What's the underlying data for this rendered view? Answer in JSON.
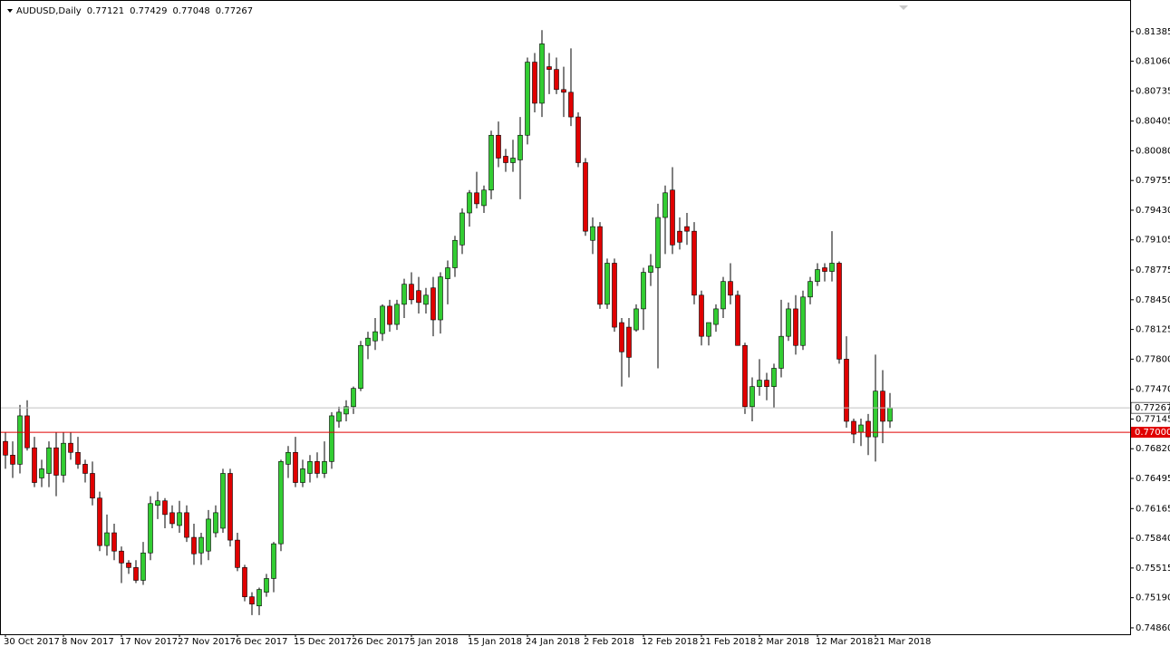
{
  "chart_data": {
    "type": "candlestick",
    "title": "AUDUSD,Daily",
    "categories": [
      "30 Oct 2017",
      null,
      null,
      null,
      null,
      null,
      null,
      null,
      "8 Nov 2017",
      null,
      null,
      null,
      null,
      null,
      null,
      null,
      "17 Nov 2017",
      null,
      null,
      null,
      null,
      null,
      null,
      null,
      "27 Nov 2017",
      null,
      null,
      null,
      null,
      null,
      null,
      null,
      "6 Dec 2017",
      null,
      null,
      null,
      null,
      null,
      null,
      null,
      "15 Dec 2017",
      null,
      null,
      null,
      null,
      null,
      null,
      null,
      "26 Dec 2017",
      null,
      null,
      null,
      null,
      null,
      null,
      null,
      "5 Jan 2018",
      null,
      null,
      null,
      null,
      null,
      null,
      null,
      "15 Jan 2018",
      null,
      null,
      null,
      null,
      null,
      null,
      null,
      "24 Jan 2018",
      null,
      null,
      null,
      null,
      null,
      null,
      null,
      "2 Feb 2018",
      null,
      null,
      null,
      null,
      null,
      null,
      null,
      "12 Feb 2018",
      null,
      null,
      null,
      null,
      null,
      null,
      null,
      "21 Feb 2018",
      null,
      null,
      null,
      null,
      null,
      null,
      null,
      "2 Mar 2018",
      null,
      null,
      null,
      null,
      null,
      null,
      null,
      "12 Mar 2018",
      null,
      null,
      null,
      null,
      null,
      null,
      null,
      "21 Mar 2018",
      null,
      null
    ],
    "open": [
      0.769,
      0.7675,
      0.7665,
      0.7718,
      0.7683,
      0.765,
      0.7655,
      0.7683,
      0.7653,
      0.7688,
      0.7678,
      0.7665,
      0.7655,
      0.7628,
      0.7576,
      0.759,
      0.757,
      0.7557,
      0.7552,
      0.7538,
      0.7568,
      0.762,
      0.7625,
      0.7612,
      0.7598,
      0.7612,
      0.7585,
      0.7568,
      0.757,
      0.759,
      0.7595,
      0.7655,
      0.7582,
      0.7552,
      0.752,
      0.751,
      0.7525,
      0.754,
      0.7578,
      0.7665,
      0.7678,
      0.7645,
      0.7655,
      0.7668,
      0.7655,
      0.7668,
      0.7712,
      0.772,
      0.7728,
      0.7748,
      0.7795,
      0.78,
      0.7808,
      0.7838,
      0.7818,
      0.784,
      0.7862,
      0.7855,
      0.784,
      0.7858,
      0.7823,
      0.7868,
      0.788,
      0.7905,
      0.794,
      0.7962,
      0.7948,
      0.7965,
      0.8025,
      0.8002,
      0.7995,
      0.7998,
      0.8025,
      0.8105,
      0.806,
      0.81,
      0.8097,
      0.8075,
      0.8072,
      0.8045,
      0.7995,
      0.791,
      0.7925,
      0.784,
      0.7885,
      0.782,
      0.7815,
      0.7812,
      0.7835,
      0.7875,
      0.788,
      0.7935,
      0.7965,
      0.792,
      0.7925,
      0.792,
      0.785,
      0.7805,
      0.7818,
      0.7835,
      0.7865,
      0.785,
      0.7795,
      0.7728,
      0.775,
      0.7757,
      0.775,
      0.777,
      0.7805,
      0.7835,
      0.7795,
      0.7848,
      0.7865,
      0.788,
      0.7876,
      0.7885,
      0.778,
      0.7712,
      0.77,
      0.7712,
      0.7695,
      0.7745,
      0.77121
    ],
    "high": [
      0.77,
      0.769,
      0.773,
      0.7735,
      0.7695,
      0.767,
      0.769,
      0.77,
      0.77,
      0.77,
      0.7695,
      0.767,
      0.7668,
      0.7635,
      0.761,
      0.76,
      0.7575,
      0.756,
      0.756,
      0.758,
      0.763,
      0.7635,
      0.7628,
      0.762,
      0.7625,
      0.762,
      0.76,
      0.759,
      0.7615,
      0.762,
      0.766,
      0.766,
      0.759,
      0.7555,
      0.7525,
      0.753,
      0.7545,
      0.758,
      0.767,
      0.7685,
      0.7695,
      0.767,
      0.7675,
      0.7678,
      0.769,
      0.7722,
      0.7728,
      0.7735,
      0.775,
      0.78,
      0.781,
      0.7825,
      0.784,
      0.7845,
      0.7845,
      0.7868,
      0.7875,
      0.787,
      0.7858,
      0.787,
      0.7875,
      0.7888,
      0.7915,
      0.7945,
      0.7965,
      0.7985,
      0.797,
      0.803,
      0.804,
      0.801,
      0.802,
      0.8045,
      0.811,
      0.8115,
      0.814,
      0.8115,
      0.811,
      0.81,
      0.812,
      0.805,
      0.8,
      0.7935,
      0.793,
      0.789,
      0.789,
      0.7825,
      0.7825,
      0.784,
      0.788,
      0.7895,
      0.795,
      0.797,
      0.799,
      0.7935,
      0.794,
      0.793,
      0.7855,
      0.782,
      0.784,
      0.787,
      0.7885,
      0.7855,
      0.7798,
      0.776,
      0.778,
      0.7765,
      0.7775,
      0.7845,
      0.7842,
      0.785,
      0.7855,
      0.787,
      0.7885,
      0.7885,
      0.792,
      0.7887,
      0.7805,
      0.7715,
      0.7715,
      0.772,
      0.7785,
      0.7768,
      0.77429
    ],
    "low": [
      0.766,
      0.765,
      0.7655,
      0.768,
      0.764,
      0.764,
      0.764,
      0.763,
      0.7645,
      0.767,
      0.766,
      0.7645,
      0.762,
      0.757,
      0.7565,
      0.756,
      0.7535,
      0.7545,
      0.7535,
      0.7533,
      0.756,
      0.7605,
      0.7595,
      0.7595,
      0.759,
      0.758,
      0.7555,
      0.7555,
      0.756,
      0.7585,
      0.759,
      0.7575,
      0.7548,
      0.7515,
      0.75,
      0.75,
      0.752,
      0.7525,
      0.757,
      0.765,
      0.764,
      0.764,
      0.7645,
      0.765,
      0.765,
      0.766,
      0.7705,
      0.7712,
      0.772,
      0.7745,
      0.778,
      0.779,
      0.78,
      0.781,
      0.7812,
      0.7825,
      0.784,
      0.783,
      0.783,
      0.7805,
      0.7808,
      0.784,
      0.787,
      0.7895,
      0.7925,
      0.7945,
      0.794,
      0.7955,
      0.799,
      0.7985,
      0.7985,
      0.7955,
      0.8015,
      0.805,
      0.8045,
      0.807,
      0.807,
      0.8045,
      0.8035,
      0.799,
      0.7915,
      0.7895,
      0.7835,
      0.7835,
      0.781,
      0.775,
      0.776,
      0.781,
      0.7812,
      0.786,
      0.777,
      0.7895,
      0.7895,
      0.79,
      0.7905,
      0.784,
      0.7795,
      0.7795,
      0.781,
      0.7825,
      0.784,
      0.7795,
      0.772,
      0.7712,
      0.774,
      0.7735,
      0.7727,
      0.776,
      0.78,
      0.7785,
      0.779,
      0.784,
      0.786,
      0.7865,
      0.7865,
      0.7775,
      0.7705,
      0.7688,
      0.7685,
      0.7675,
      0.7668,
      0.7688,
      0.77048
    ],
    "close": [
      0.7675,
      0.7665,
      0.7718,
      0.7683,
      0.7645,
      0.766,
      0.7683,
      0.7653,
      0.7688,
      0.7678,
      0.7665,
      0.7655,
      0.7628,
      0.7576,
      0.759,
      0.757,
      0.7557,
      0.7552,
      0.7538,
      0.7568,
      0.7622,
      0.7625,
      0.761,
      0.76,
      0.7612,
      0.7585,
      0.7567,
      0.7585,
      0.7605,
      0.7612,
      0.7655,
      0.7582,
      0.7552,
      0.752,
      0.7512,
      0.7528,
      0.754,
      0.7578,
      0.7668,
      0.7678,
      0.7645,
      0.766,
      0.7668,
      0.7655,
      0.7668,
      0.7718,
      0.7722,
      0.7728,
      0.7748,
      0.7795,
      0.7803,
      0.781,
      0.7838,
      0.7818,
      0.784,
      0.7862,
      0.7845,
      0.7842,
      0.785,
      0.7823,
      0.787,
      0.788,
      0.791,
      0.794,
      0.7962,
      0.795,
      0.7965,
      0.8025,
      0.8,
      0.7995,
      0.8,
      0.8025,
      0.8105,
      0.806,
      0.8125,
      0.8097,
      0.8075,
      0.8072,
      0.8045,
      0.7995,
      0.792,
      0.7925,
      0.784,
      0.7885,
      0.7815,
      0.7788,
      0.7782,
      0.7835,
      0.7875,
      0.7882,
      0.7935,
      0.7962,
      0.7905,
      0.7908,
      0.792,
      0.785,
      0.7805,
      0.782,
      0.7835,
      0.7865,
      0.785,
      0.7795,
      0.7728,
      0.775,
      0.7757,
      0.775,
      0.777,
      0.7805,
      0.7835,
      0.7795,
      0.7848,
      0.7865,
      0.7878,
      0.7876,
      0.7885,
      0.778,
      0.7712,
      0.7698,
      0.7708,
      0.7695,
      0.7745,
      0.7712,
      0.77267
    ],
    "up_color": "#32cd32",
    "down_color": "#e00000",
    "ylim": [
      0.7479,
      0.8169
    ],
    "yticks": [
      0.81385,
      {
        "value": 0.8106,
        "label": "0.81060"
      },
      0.80735,
      0.80405,
      {
        "value": 0.8008,
        "label": "0.80080"
      },
      0.79755,
      {
        "value": 0.7943,
        "label": "0.79430"
      },
      0.79105,
      0.78775,
      {
        "value": 0.7845,
        "label": "0.78450"
      },
      0.78125,
      {
        "value": 0.778,
        "label": "0.77800"
      },
      {
        "value": 0.7747,
        "label": "0.77470"
      },
      0.77145,
      {
        "value": 0.7682,
        "label": "0.76820"
      },
      0.76495,
      0.76165,
      {
        "value": 0.7584,
        "label": "0.75840"
      },
      0.75515,
      {
        "value": 0.7519,
        "label": "0.75190"
      },
      {
        "value": 0.7486,
        "label": "0.74860"
      }
    ],
    "level": {
      "value": 0.77,
      "label": "0.77000"
    },
    "level_color": "#e00000",
    "price_line_color": "#c0c0c0",
    "grid": false
  }
}
